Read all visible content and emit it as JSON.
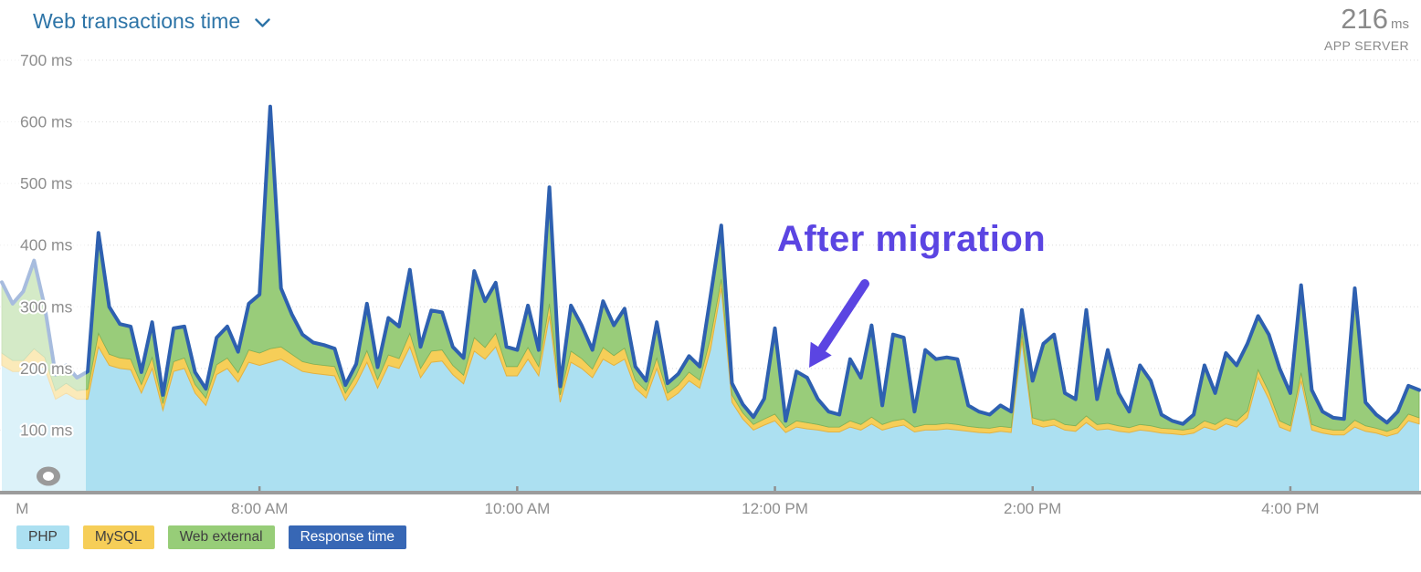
{
  "header": {
    "title": "Web transactions time",
    "summary_value": "216",
    "summary_unit": "ms",
    "summary_label": "APP SERVER"
  },
  "annotation": {
    "text": "After migration"
  },
  "legend": {
    "position": "bottom-left",
    "items": [
      {
        "label": "PHP",
        "color": "#ACE0F1",
        "text_color": "#3F3F3F"
      },
      {
        "label": "MySQL",
        "color": "#F6CE58",
        "text_color": "#3F3F3F"
      },
      {
        "label": "Web external",
        "color": "#97CD78",
        "text_color": "#3F3F3F"
      },
      {
        "label": "Response time",
        "color": "#3767B5",
        "text_color": "#FFFFFF"
      }
    ]
  },
  "colors": {
    "php_fill": "#ACE0F1",
    "mysql_fill": "#F6CE58",
    "mysql_edge": "#E2B242",
    "web_external_fill": "#99CC7A",
    "web_external_edge": "#7DB258",
    "response_line": "#2E60B0",
    "grid": "#D9D9D9",
    "axis_bar": "#9C9C9C",
    "tick": "#8F8F8F",
    "axis_label": "#8E8E8E",
    "title": "#2D74A7",
    "summary": "#8A8A8A",
    "annotation": "#5B45E2",
    "preview_overlay": "rgba(255,255,255,0.58)",
    "handle_ring": "#9A9A9A"
  },
  "chart_data": {
    "type": "area",
    "stacked": true,
    "title": "Web transactions time",
    "ylabel": "ms",
    "ylim": [
      0,
      700
    ],
    "ytick_labels": [
      "100 ms",
      "200 ms",
      "300 ms",
      "400 ms",
      "500 ms",
      "600 ms",
      "700 ms"
    ],
    "x_start": "6:00 AM",
    "x_end": "5:00 PM",
    "point_interval_minutes": 5,
    "x_ticks": [
      {
        "i": 1.9,
        "label": "M",
        "tick_mark": false
      },
      {
        "i": 24,
        "label": "8:00 AM",
        "tick_mark": true
      },
      {
        "i": 48,
        "label": "10:00 AM",
        "tick_mark": true
      },
      {
        "i": 72,
        "label": "12:00 PM",
        "tick_mark": true
      },
      {
        "i": 96,
        "label": "2:00 PM",
        "tick_mark": true
      },
      {
        "i": 120,
        "label": "4:00 PM",
        "tick_mark": true
      }
    ],
    "faded_preview_points": 8,
    "legend_entries": [
      "PHP",
      "MySQL",
      "Web external",
      "Response time"
    ],
    "derived_series": {
      "name": "Web external",
      "formula": "Response time - PHP - MySQL"
    },
    "series": [
      {
        "name": "PHP",
        "values": [
          205,
          195,
          195,
          210,
          200,
          150,
          160,
          150,
          150,
          235,
          205,
          200,
          198,
          160,
          200,
          132,
          195,
          200,
          160,
          140,
          190,
          200,
          178,
          210,
          205,
          210,
          215,
          205,
          195,
          192,
          190,
          188,
          148,
          175,
          210,
          168,
          205,
          200,
          235,
          185,
          210,
          212,
          190,
          175,
          228,
          215,
          235,
          188,
          188,
          215,
          188,
          285,
          145,
          210,
          200,
          185,
          215,
          205,
          215,
          168,
          152,
          200,
          148,
          160,
          180,
          168,
          230,
          330,
          145,
          118,
          100,
          108,
          115,
          96,
          105,
          102,
          100,
          97,
          97,
          105,
          100,
          110,
          100,
          105,
          108,
          97,
          100,
          100,
          102,
          100,
          98,
          96,
          95,
          98,
          96,
          245,
          110,
          105,
          108,
          100,
          98,
          112,
          100,
          102,
          98,
          96,
          100,
          98,
          95,
          94,
          92,
          95,
          105,
          100,
          110,
          105,
          120,
          185,
          150,
          105,
          98,
          180,
          100,
          95,
          92,
          92,
          105,
          98,
          95,
          90,
          95,
          115,
          110
        ]
      },
      {
        "name": "MySQL",
        "values": [
          20,
          18,
          18,
          22,
          18,
          14,
          16,
          14,
          16,
          22,
          18,
          17,
          17,
          14,
          18,
          11,
          16,
          17,
          14,
          12,
          16,
          17,
          15,
          20,
          20,
          22,
          20,
          18,
          16,
          15,
          15,
          15,
          12,
          14,
          19,
          14,
          17,
          16,
          22,
          15,
          18,
          18,
          15,
          14,
          22,
          19,
          22,
          15,
          15,
          19,
          15,
          20,
          12,
          18,
          16,
          14,
          19,
          16,
          18,
          13,
          12,
          17,
          12,
          13,
          14,
          13,
          20,
          15,
          12,
          10,
          9,
          10,
          11,
          8,
          10,
          10,
          9,
          8,
          8,
          10,
          9,
          11,
          9,
          10,
          10,
          8,
          9,
          9,
          9,
          9,
          8,
          8,
          8,
          8,
          8,
          12,
          10,
          10,
          10,
          9,
          9,
          11,
          9,
          9,
          9,
          8,
          9,
          9,
          8,
          8,
          8,
          8,
          10,
          9,
          10,
          10,
          11,
          13,
          12,
          10,
          9,
          13,
          9,
          8,
          8,
          8,
          11,
          9,
          8,
          8,
          9,
          11,
          10
        ]
      },
      {
        "name": "Response time",
        "role": "stack_total_line",
        "values": [
          340,
          305,
          325,
          375,
          300,
          190,
          205,
          185,
          195,
          420,
          300,
          272,
          268,
          194,
          275,
          157,
          265,
          268,
          194,
          167,
          250,
          268,
          227,
          305,
          320,
          625,
          330,
          288,
          255,
          242,
          238,
          232,
          173,
          207,
          305,
          202,
          282,
          268,
          360,
          235,
          294,
          291,
          235,
          217,
          358,
          309,
          339,
          235,
          230,
          302,
          230,
          494,
          171,
          302,
          270,
          230,
          309,
          270,
          297,
          203,
          180,
          275,
          176,
          191,
          220,
          203,
          317,
          432,
          176,
          142,
          121,
          151,
          265,
          115,
          195,
          185,
          150,
          130,
          125,
          215,
          185,
          270,
          140,
          255,
          250,
          130,
          230,
          215,
          218,
          215,
          140,
          130,
          125,
          140,
          130,
          295,
          180,
          240,
          255,
          160,
          150,
          295,
          150,
          230,
          160,
          130,
          205,
          180,
          125,
          115,
          110,
          125,
          205,
          160,
          225,
          205,
          240,
          285,
          255,
          200,
          160,
          335,
          165,
          130,
          120,
          118,
          330,
          145,
          125,
          112,
          130,
          172,
          165
        ]
      }
    ]
  }
}
